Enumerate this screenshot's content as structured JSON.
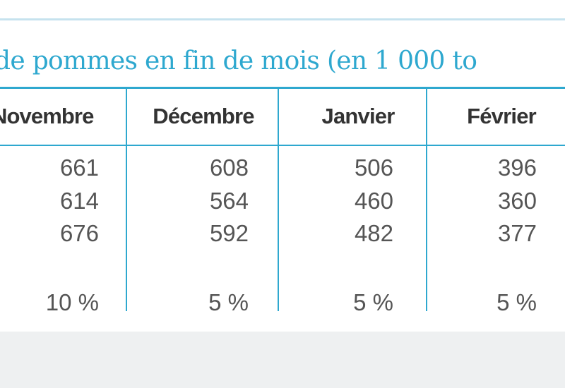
{
  "table": {
    "title": "de pommes en fin de mois (en 1 000 to",
    "headers": [
      "Novembre",
      "Décembre",
      "Janvier",
      "Février"
    ],
    "rows": [
      [
        "661",
        "608",
        "506",
        "396"
      ],
      [
        "614",
        "564",
        "460",
        "360"
      ],
      [
        "676",
        "592",
        "482",
        "377"
      ],
      [
        "10 %",
        "5 %",
        "5 %",
        "5 %"
      ]
    ]
  },
  "colors": {
    "accent": "#2ea8cf",
    "text": "#555555",
    "header_text": "#333333"
  }
}
